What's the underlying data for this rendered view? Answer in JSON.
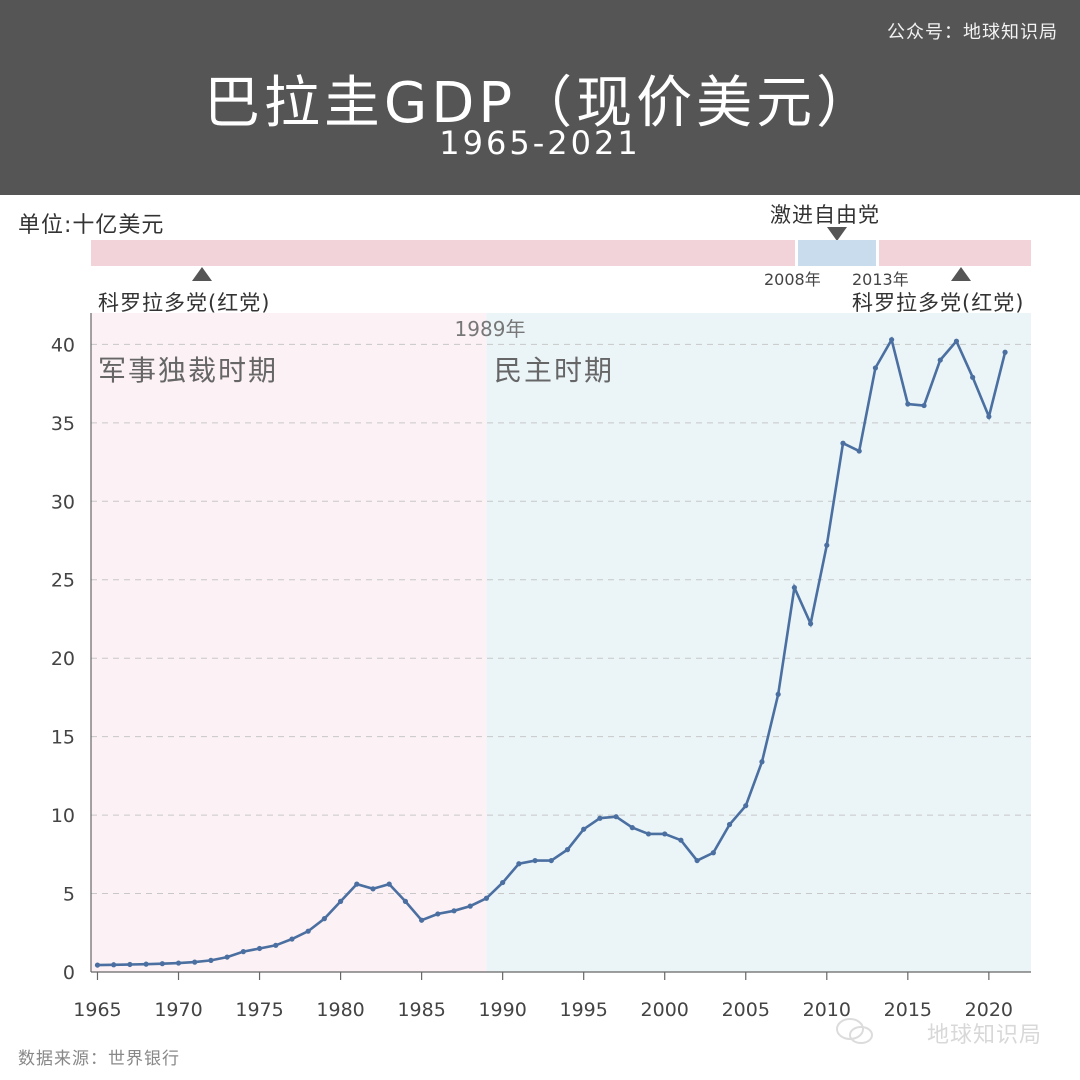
{
  "header": {
    "account": "公众号：地球知识局",
    "title": "巴拉圭GDP（现价美元）",
    "subtitle": "1965-2021"
  },
  "unit_label": "单位:十亿美元",
  "party_bar": {
    "left_party": "科罗拉多党(红党)",
    "middle_party": "激进自由党",
    "right_party": "科罗拉多党(红党)",
    "year_start_liberal": "2008年",
    "year_end_liberal": "2013年",
    "colors": {
      "red_party": "#f2d3d9",
      "liberal": "#c9dcee"
    }
  },
  "periods": {
    "divider_label": "1989年",
    "military": "军事独裁时期",
    "democracy": "民主时期",
    "colors": {
      "military": "#fcf1f4",
      "democracy": "#ebf5f8"
    }
  },
  "chart_data": {
    "type": "line",
    "title": "巴拉圭GDP（现价美元）",
    "subtitle": "1965-2021",
    "ylabel": "单位:十亿美元",
    "xlim": [
      1964.6,
      2022.6
    ],
    "ylim": [
      0,
      42
    ],
    "grid": true,
    "line_color": "#4a6fa0",
    "xticks": [
      1965,
      1970,
      1975,
      1980,
      1985,
      1990,
      1995,
      2000,
      2005,
      2010,
      2015,
      2020
    ],
    "yticks": [
      0,
      5,
      10,
      15,
      20,
      25,
      30,
      35,
      40
    ],
    "x": [
      1965,
      1966,
      1967,
      1968,
      1969,
      1970,
      1971,
      1972,
      1973,
      1974,
      1975,
      1976,
      1977,
      1978,
      1979,
      1980,
      1981,
      1982,
      1983,
      1984,
      1985,
      1986,
      1987,
      1988,
      1989,
      1990,
      1991,
      1992,
      1993,
      1994,
      1995,
      1996,
      1997,
      1998,
      1999,
      2000,
      2001,
      2002,
      2003,
      2004,
      2005,
      2006,
      2007,
      2008,
      2009,
      2010,
      2011,
      2012,
      2013,
      2014,
      2015,
      2016,
      2017,
      2018,
      2019,
      2020,
      2021
    ],
    "values": [
      0.44,
      0.46,
      0.48,
      0.5,
      0.53,
      0.57,
      0.63,
      0.74,
      0.95,
      1.3,
      1.5,
      1.7,
      2.1,
      2.6,
      3.4,
      4.5,
      5.6,
      5.3,
      5.6,
      4.5,
      3.3,
      3.7,
      3.9,
      4.2,
      4.7,
      5.7,
      6.9,
      7.1,
      7.1,
      7.8,
      9.1,
      9.8,
      9.9,
      9.2,
      8.8,
      8.8,
      8.4,
      7.1,
      7.6,
      9.4,
      10.6,
      13.4,
      17.7,
      24.5,
      22.2,
      27.2,
      33.7,
      33.2,
      38.5,
      40.3,
      36.2,
      36.1,
      39.0,
      40.2,
      37.9,
      35.4,
      39.5
    ]
  },
  "source": "数据来源：世界银行",
  "watermark": "地球知识局"
}
